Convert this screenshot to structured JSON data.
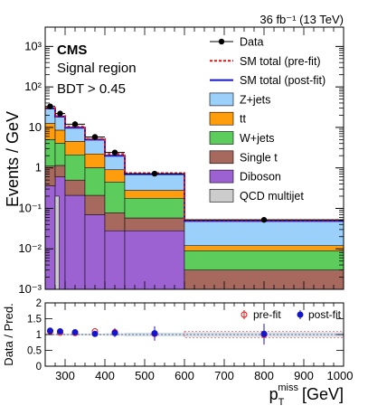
{
  "header": {
    "lumi": "36 fb⁻¹ (13 TeV)"
  },
  "labels": {
    "experiment": "CMS",
    "region": "Signal region",
    "cut": "BDT > 0.45"
  },
  "chart_data": [
    {
      "type": "stacked-histogram",
      "ylabel": "Events / GeV",
      "yscale": "log",
      "ylim": [
        0.001,
        3000
      ],
      "y_ticks": [
        {
          "value": 0.001,
          "label": "10⁻³"
        },
        {
          "value": 0.01,
          "label": "10⁻²"
        },
        {
          "value": 0.1,
          "label": "10⁻¹"
        },
        {
          "value": 1,
          "label": "1"
        },
        {
          "value": 10,
          "label": "10"
        },
        {
          "value": 100,
          "label": "10²"
        },
        {
          "value": 1000,
          "label": "10³"
        }
      ],
      "xlim": [
        250,
        1000
      ],
      "bin_edges": [
        250,
        275,
        300,
        350,
        400,
        450,
        600,
        1000
      ],
      "series": [
        {
          "name": "Diboson",
          "color": "#9c62d2",
          "values": [
            0.36,
            0.6,
            0.21,
            0.07,
            0.028,
            0.028,
            0.001
          ]
        },
        {
          "name": "Single t",
          "color": "#a7685e",
          "values": [
            0.75,
            0.55,
            0.29,
            0.14,
            0.05,
            0.03,
            0.002
          ]
        },
        {
          "name": "W+jets",
          "color": "#5ccd5c",
          "values": [
            3.9,
            2.9,
            1.6,
            0.8,
            0.37,
            0.12,
            0.006
          ]
        },
        {
          "name": "tt",
          "color": "#ff9d0c",
          "values": [
            7.5,
            4.5,
            2.4,
            1.2,
            0.45,
            0.1,
            0.003
          ]
        },
        {
          "name": "Z+jets",
          "color": "#9bd0fa",
          "values": [
            17,
            10,
            5.3,
            2.8,
            1.1,
            0.42,
            0.038
          ]
        }
      ],
      "qcd": {
        "name": "QCD multijet",
        "color": "#cccccc",
        "bin_edges": [
          275,
          285
        ],
        "value": 0.2
      },
      "sm_prefit": {
        "name": "SM total (pre-fit)",
        "color": "#ee1111",
        "values": [
          30,
          19,
          10.5,
          5.2,
          2.2,
          0.74,
          0.051
        ]
      },
      "sm_postfit": {
        "name": "SM total (post-fit)",
        "color": "#1515cc",
        "values": [
          29.5,
          18.5,
          9.8,
          5.0,
          2.0,
          0.7,
          0.049
        ]
      },
      "data": {
        "name": "Data",
        "x": [
          262.5,
          287.5,
          325,
          375,
          425,
          525,
          800
        ],
        "y": [
          33,
          22,
          12,
          5.8,
          2.4,
          0.72,
          0.052
        ]
      }
    },
    {
      "type": "ratio",
      "ylabel": "Data / Pred.",
      "xlabel_main": "p",
      "xlabel_sub": "T",
      "xlabel_sup": "miss",
      "xlabel_unit": "[GeV]",
      "ylim": [
        0,
        2
      ],
      "y_ticks": [
        "0",
        "0.5",
        "1",
        "1.5",
        "2"
      ],
      "x_ticks": [
        "300",
        "400",
        "500",
        "600",
        "700",
        "800",
        "900",
        "1000"
      ],
      "band": {
        "color": "#b8cde0",
        "values": [
          0.03,
          0.03,
          0.03,
          0.03,
          0.04,
          0.06,
          0.08
        ]
      },
      "prefit": {
        "name": "pre-fit",
        "color": "#ee1111",
        "x": [
          262.5,
          287.5,
          325,
          375,
          425,
          525,
          800
        ],
        "y": [
          1.1,
          1.06,
          1.05,
          1.1,
          1.07,
          1.02,
          1.0
        ],
        "err": [
          0.05,
          0.06,
          0.06,
          0.09,
          0.13,
          0.22,
          0.32
        ]
      },
      "postfit": {
        "name": "post-fit",
        "color": "#1515cc",
        "x": [
          262.5,
          287.5,
          325,
          375,
          425,
          525,
          800
        ],
        "y": [
          1.12,
          1.1,
          1.07,
          1.02,
          1.05,
          1.04,
          1.02
        ],
        "err": [
          0.05,
          0.06,
          0.06,
          0.09,
          0.13,
          0.22,
          0.32
        ]
      }
    }
  ]
}
